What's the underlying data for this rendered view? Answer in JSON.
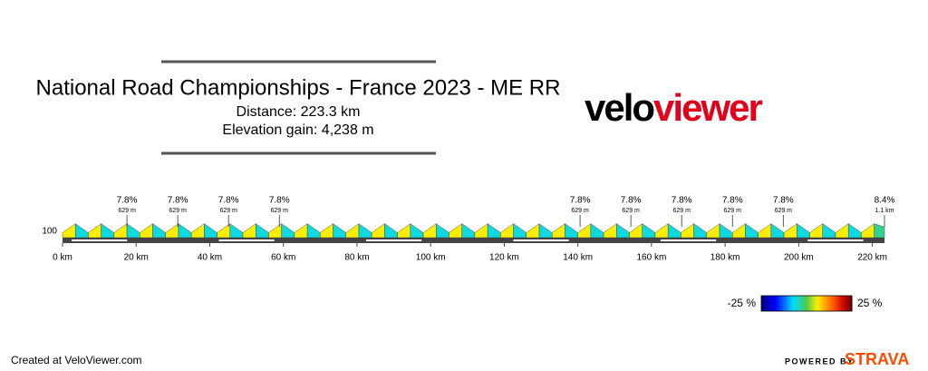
{
  "chart_data": {
    "type": "area",
    "title": "National Road Championships - France 2023 - ME RR",
    "subtitle_lines": [
      "Distance: 223.3 km",
      "Elevation gain: 4,238 m"
    ],
    "logo": {
      "left": "velo",
      "right": "viewer"
    },
    "x": [
      0,
      3.5,
      7,
      10.5,
      14,
      17.5,
      21,
      24.5,
      28,
      31.5,
      35,
      38.5,
      42,
      45.5,
      49,
      52.5,
      56,
      59.5,
      63,
      66.5,
      70,
      73.5,
      77,
      80.5,
      84,
      87.5,
      91,
      94.5,
      98,
      101.5,
      105,
      108.5,
      112,
      115.5,
      119,
      122.5,
      126,
      129.5,
      133,
      136.5,
      140,
      143.5,
      147,
      150.5,
      154,
      157.5,
      161,
      164.5,
      168,
      171.5,
      175,
      178.5,
      182,
      185.5,
      189,
      192.5,
      196,
      199.5,
      203,
      206.5,
      210,
      213.5,
      217,
      220.5,
      223.3
    ],
    "series": [
      {
        "values": [
          95,
          122,
          95,
          122,
          95,
          122,
          95,
          122,
          95,
          122,
          95,
          122,
          95,
          122,
          95,
          122,
          95,
          122,
          95,
          122,
          95,
          122,
          95,
          122,
          95,
          122,
          95,
          122,
          95,
          122,
          95,
          122,
          95,
          122,
          95,
          122,
          95,
          122,
          95,
          122,
          95,
          122,
          95,
          122,
          95,
          122,
          95,
          122,
          95,
          122,
          95,
          122,
          95,
          122,
          95,
          122,
          95,
          122,
          95,
          122,
          95,
          122,
          95,
          122,
          112
        ]
      }
    ],
    "xlim": [
      0,
      223.3
    ],
    "ylim": [
      80,
      140
    ],
    "xticks": [
      {
        "value": 0,
        "label": "0 km"
      },
      {
        "value": 20,
        "label": "20 km"
      },
      {
        "value": 40,
        "label": "40 km"
      },
      {
        "value": 60,
        "label": "60 km"
      },
      {
        "value": 80,
        "label": "80 km"
      },
      {
        "value": 100,
        "label": "100 km"
      },
      {
        "value": 120,
        "label": "120 km"
      },
      {
        "value": 140,
        "label": "140 km"
      },
      {
        "value": 160,
        "label": "160 km"
      },
      {
        "value": 180,
        "label": "180 km"
      },
      {
        "value": 200,
        "label": "200 km"
      },
      {
        "value": 220,
        "label": "220 km"
      }
    ],
    "yticks": [
      100
    ],
    "climbs": [
      {
        "x": 17.5,
        "grade": "7.8%",
        "length": "629 m"
      },
      {
        "x": 31.3,
        "grade": "7.8%",
        "length": "629 m"
      },
      {
        "x": 45.1,
        "grade": "7.8%",
        "length": "629 m"
      },
      {
        "x": 58.9,
        "grade": "7.8%",
        "length": "629 m"
      },
      {
        "x": 140.6,
        "grade": "7.8%",
        "length": "629 m"
      },
      {
        "x": 154.4,
        "grade": "7.8%",
        "length": "629 m"
      },
      {
        "x": 168.2,
        "grade": "7.8%",
        "length": "629 m"
      },
      {
        "x": 182.0,
        "grade": "7.8%",
        "length": "629 m"
      },
      {
        "x": 195.8,
        "grade": "7.8%",
        "length": "629 m"
      },
      {
        "x": 223.3,
        "grade": "8.4%",
        "length": "1.1 km"
      }
    ],
    "colorbar_ticks": [
      {
        "value": -25,
        "label": "-25 %"
      },
      {
        "value": 25,
        "label": "25 %"
      }
    ],
    "footer": "Created at VeloViewer.com",
    "powered_by": "POWERED BY",
    "brand": "STRAVA"
  }
}
